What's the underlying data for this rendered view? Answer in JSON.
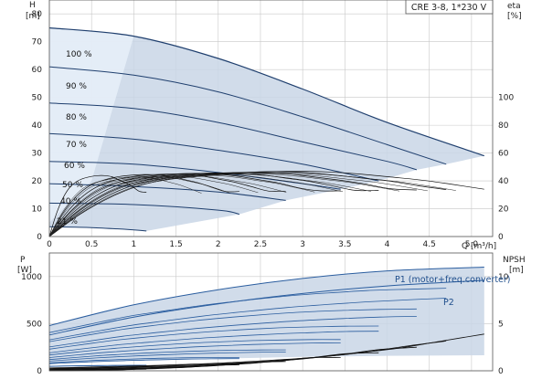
{
  "title_box": "CRE 3-8, 1*230 V",
  "chart_data": [
    {
      "type": "line",
      "name": "head",
      "ylabel_left": [
        "H",
        "[m]"
      ],
      "ylabel_right": [
        "eta",
        "[%]"
      ],
      "xlabel": "Q [m³/h]",
      "xlim": [
        0,
        5.25
      ],
      "ylim": [
        0,
        85
      ],
      "xticks": [
        "0",
        "0.5",
        "1",
        "1.5",
        "2",
        "2.5",
        "3",
        "3.5",
        "4",
        "4.5",
        "5.0"
      ],
      "yticks_left": [
        "0",
        "10",
        "20",
        "30",
        "40",
        "50",
        "60",
        "70",
        "80"
      ],
      "yticks_right": [
        "0",
        "20",
        "40",
        "60",
        "80",
        "100"
      ],
      "speed_labels": [
        "100 %",
        "90 %",
        "80 %",
        "70 %",
        "60 %",
        "50 %",
        "40 %",
        "21 %"
      ],
      "curves": [
        {
          "speed": 100,
          "x": [
            0,
            1,
            2,
            3,
            4,
            5.15
          ],
          "y": [
            75,
            72,
            64,
            53,
            41,
            29
          ]
        },
        {
          "speed": 90,
          "x": [
            0,
            1,
            2,
            3,
            4,
            4.7
          ],
          "y": [
            61,
            58,
            52,
            43,
            33,
            26
          ]
        },
        {
          "speed": 80,
          "x": [
            0,
            1,
            2,
            3,
            4,
            4.35
          ],
          "y": [
            48,
            46,
            41,
            34,
            27,
            24
          ]
        },
        {
          "speed": 70,
          "x": [
            0,
            1,
            2,
            3,
            3.9
          ],
          "y": [
            37,
            35,
            31,
            26,
            20
          ]
        },
        {
          "speed": 60,
          "x": [
            0,
            1,
            2,
            3,
            3.45
          ],
          "y": [
            27,
            26,
            23,
            19,
            17
          ]
        },
        {
          "speed": 50,
          "x": [
            0,
            1,
            2,
            2.8
          ],
          "y": [
            19,
            18,
            16,
            13
          ]
        },
        {
          "speed": 40,
          "x": [
            0,
            1,
            2,
            2.25
          ],
          "y": [
            12,
            11.5,
            9.5,
            8
          ]
        },
        {
          "speed": 21,
          "x": [
            0,
            0.5,
            1,
            1.15
          ],
          "y": [
            3.5,
            3.2,
            2.4,
            2
          ]
        }
      ],
      "efficiency_curve": {
        "x": [
          0,
          0.5,
          1,
          1.5,
          2,
          2.5,
          3,
          3.5,
          4,
          4.5,
          5.15
        ],
        "eta": [
          0,
          22,
          36,
          42,
          45,
          46.5,
          47,
          46,
          43,
          40,
          34
        ]
      }
    },
    {
      "type": "line",
      "name": "power",
      "ylabel_left": [
        "P",
        "[W]"
      ],
      "ylabel_right": [
        "NPSH",
        "[m]"
      ],
      "xlim": [
        0,
        5.25
      ],
      "ylim": [
        0,
        1250
      ],
      "yticks_left": [
        "0",
        "500",
        "1000"
      ],
      "yticks_right": [
        "0",
        "5",
        "10"
      ],
      "series": [
        {
          "name": "P1 (motor+freq.converter)",
          "x": [
            0,
            1,
            2,
            3,
            4,
            5.15
          ],
          "values": [
            480,
            700,
            860,
            980,
            1060,
            1100
          ]
        },
        {
          "name": "P2",
          "x": [
            0,
            1,
            2,
            3,
            4,
            5.15
          ],
          "values": [
            380,
            570,
            710,
            820,
            900,
            960
          ]
        }
      ],
      "npsh": {
        "x": [
          0,
          1,
          2,
          3,
          4,
          5.15
        ],
        "values": [
          0.3,
          0.5,
          0.8,
          1.3,
          2.2,
          3.9
        ]
      }
    }
  ]
}
